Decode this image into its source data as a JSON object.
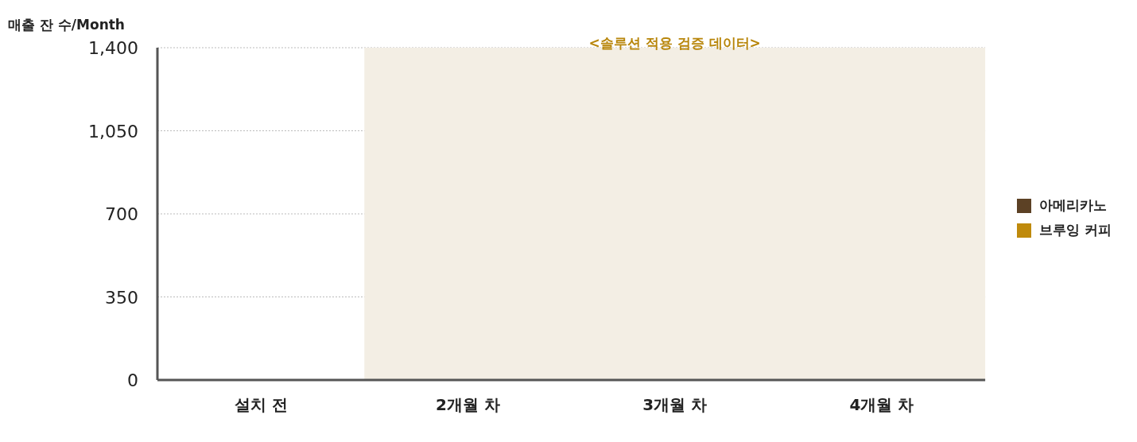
{
  "chart_data": {
    "type": "bar",
    "ylabel": "매출 잔 수/Month",
    "categories": [
      "설치 전",
      "2개월 차",
      "3개월 차",
      "4개월 차"
    ],
    "series": [
      {
        "name": "아메리카노",
        "color": "#5c4125",
        "values": [
          0,
          0,
          0,
          0
        ]
      },
      {
        "name": "브루잉 커피",
        "color": "#bf8a0c",
        "values": [
          0,
          0,
          0,
          0
        ]
      }
    ],
    "ylim": [
      0,
      1400
    ],
    "yticks": [
      0,
      350,
      700,
      {
        "value": 1050,
        "label": "1,050"
      },
      {
        "value": 1400,
        "label": "1,400"
      }
    ],
    "grid": "y",
    "legend": "right",
    "bands": [
      {
        "axis": "x",
        "from": "2개월 차",
        "to": "4개월 차",
        "label": "<솔루션 적용 검증 데이터>",
        "color": "#f3eee4"
      }
    ]
  }
}
